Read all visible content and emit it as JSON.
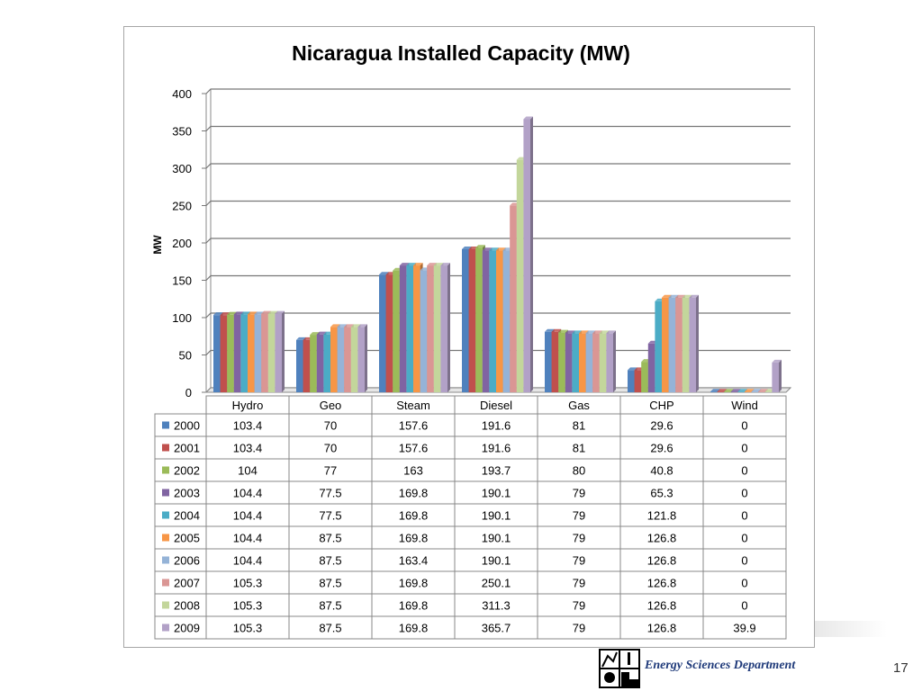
{
  "chart_data": {
    "type": "bar",
    "title": "Nicaragua Installed Capacity  (MW)",
    "ylabel": "MW",
    "xlabel": "",
    "ylim": [
      0,
      400
    ],
    "yticks": [
      0,
      50,
      100,
      150,
      200,
      250,
      300,
      350,
      400
    ],
    "grid": true,
    "legend": "data-table",
    "categories": [
      "Hydro",
      "Geo",
      "Steam",
      "Diesel",
      "Gas",
      "CHP",
      "Wind"
    ],
    "series": [
      {
        "name": "2000",
        "color": "#4f81bd",
        "values": [
          103.4,
          70,
          157.6,
          191.6,
          81,
          29.6,
          0
        ]
      },
      {
        "name": "2001",
        "color": "#c0504d",
        "values": [
          103.4,
          70,
          157.6,
          191.6,
          81,
          29.6,
          0
        ]
      },
      {
        "name": "2002",
        "color": "#9bbb59",
        "values": [
          104,
          77,
          163,
          193.7,
          80,
          40.8,
          0
        ]
      },
      {
        "name": "2003",
        "color": "#8064a2",
        "values": [
          104.4,
          77.5,
          169.8,
          190.1,
          79,
          65.3,
          0
        ]
      },
      {
        "name": "2004",
        "color": "#4bacc6",
        "values": [
          104.4,
          77.5,
          169.8,
          190.1,
          79,
          121.8,
          0
        ]
      },
      {
        "name": "2005",
        "color": "#f79646",
        "values": [
          104.4,
          87.5,
          169.8,
          190.1,
          79,
          126.8,
          0
        ]
      },
      {
        "name": "2006",
        "color": "#95b3d7",
        "values": [
          104.4,
          87.5,
          163.4,
          190.1,
          79,
          126.8,
          0
        ]
      },
      {
        "name": "2007",
        "color": "#da9694",
        "values": [
          105.3,
          87.5,
          169.8,
          250.1,
          79,
          126.8,
          0
        ]
      },
      {
        "name": "2008",
        "color": "#c3d69b",
        "values": [
          105.3,
          87.5,
          169.8,
          311.3,
          79,
          126.8,
          0
        ]
      },
      {
        "name": "2009",
        "color": "#b2a1c7",
        "values": [
          105.3,
          87.5,
          169.8,
          365.7,
          79,
          126.8,
          39.9
        ]
      }
    ]
  },
  "footer": {
    "department": "Energy Sciences Department",
    "page_number": "17"
  }
}
